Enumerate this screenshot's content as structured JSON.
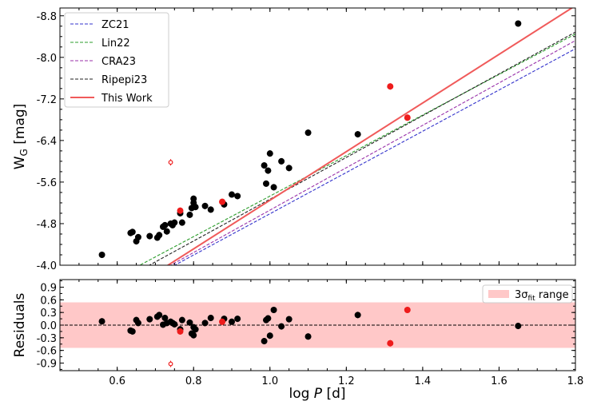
{
  "chart_data": {
    "type": "scatter",
    "xlabel": "log P [d]",
    "top": {
      "ylabel": "W_G [mag]",
      "xlim": [
        0.45,
        1.8
      ],
      "ylim": [
        -4.0,
        -8.95
      ],
      "yticks": [
        "-8.8",
        "-8.0",
        "-7.2",
        "-6.4",
        "-5.6",
        "-4.8",
        "-4.0"
      ],
      "legend_position": "top-left",
      "lines": [
        {
          "name": "ZC21",
          "color": "#3333cc",
          "dash": "dashed",
          "intercept": -1.02,
          "slope": -3.97
        },
        {
          "name": "Lin22",
          "color": "#2e9e2e",
          "dash": "dashed",
          "intercept": -1.43,
          "slope": -3.9
        },
        {
          "name": "CRA23",
          "color": "#9932aa",
          "dash": "dashed",
          "intercept": -0.98,
          "slope": -4.08
        },
        {
          "name": "Ripepi23",
          "color": "#222222",
          "dash": "dashed",
          "intercept": -1.25,
          "slope": -4.02
        },
        {
          "name": "This Work",
          "color": "#f05a5a",
          "dash": "solid",
          "intercept": -0.57,
          "slope": -4.68
        }
      ],
      "black_points": [
        {
          "x": 0.56,
          "y": -4.2
        },
        {
          "x": 0.635,
          "y": -4.62
        },
        {
          "x": 0.64,
          "y": -4.64
        },
        {
          "x": 0.65,
          "y": -4.46
        },
        {
          "x": 0.655,
          "y": -4.54
        },
        {
          "x": 0.685,
          "y": -4.56
        },
        {
          "x": 0.705,
          "y": -4.53
        },
        {
          "x": 0.71,
          "y": -4.58
        },
        {
          "x": 0.72,
          "y": -4.74
        },
        {
          "x": 0.725,
          "y": -4.77
        },
        {
          "x": 0.73,
          "y": -4.65
        },
        {
          "x": 0.74,
          "y": -4.8
        },
        {
          "x": 0.745,
          "y": -4.77
        },
        {
          "x": 0.75,
          "y": -4.82
        },
        {
          "x": 0.765,
          "y": -5.0
        },
        {
          "x": 0.77,
          "y": -4.82
        },
        {
          "x": 0.79,
          "y": -4.97
        },
        {
          "x": 0.795,
          "y": -5.1
        },
        {
          "x": 0.8,
          "y": -5.2
        },
        {
          "x": 0.8,
          "y": -5.28
        },
        {
          "x": 0.805,
          "y": -5.12
        },
        {
          "x": 0.83,
          "y": -5.14
        },
        {
          "x": 0.845,
          "y": -5.07
        },
        {
          "x": 0.88,
          "y": -5.17
        },
        {
          "x": 0.9,
          "y": -5.36
        },
        {
          "x": 0.915,
          "y": -5.33
        },
        {
          "x": 0.985,
          "y": -5.92
        },
        {
          "x": 0.99,
          "y": -5.57
        },
        {
          "x": 0.995,
          "y": -5.82
        },
        {
          "x": 1.0,
          "y": -6.15
        },
        {
          "x": 1.01,
          "y": -5.5
        },
        {
          "x": 1.03,
          "y": -6.0
        },
        {
          "x": 1.05,
          "y": -5.87
        },
        {
          "x": 1.1,
          "y": -6.55
        },
        {
          "x": 1.23,
          "y": -6.52
        },
        {
          "x": 1.65,
          "y": -8.65
        }
      ],
      "red_points": [
        {
          "x": 0.74,
          "y": -5.98
        },
        {
          "x": 0.765,
          "y": -5.05
        },
        {
          "x": 0.875,
          "y": -5.22
        },
        {
          "x": 1.315,
          "y": -7.44
        },
        {
          "x": 1.36,
          "y": -6.84
        }
      ]
    },
    "residuals": {
      "ylabel": "Residuals",
      "ylim": [
        -1.08,
        1.08
      ],
      "yticks": [
        "0.9",
        "0.6",
        "0.3",
        "0.0",
        "-0.3",
        "-0.6",
        "-0.9"
      ],
      "band": [
        -0.54,
        0.54
      ],
      "band_label": "3σ",
      "band_label_sub": "fit",
      "band_label_rest": " range",
      "legend_position": "top-right",
      "black_points": [
        {
          "x": 0.56,
          "y": 0.09
        },
        {
          "x": 0.635,
          "y": -0.13
        },
        {
          "x": 0.64,
          "y": -0.15
        },
        {
          "x": 0.65,
          "y": 0.12
        },
        {
          "x": 0.655,
          "y": 0.05
        },
        {
          "x": 0.685,
          "y": 0.14
        },
        {
          "x": 0.705,
          "y": 0.2
        },
        {
          "x": 0.71,
          "y": 0.24
        },
        {
          "x": 0.72,
          "y": 0.01
        },
        {
          "x": 0.725,
          "y": 0.17
        },
        {
          "x": 0.73,
          "y": 0.05
        },
        {
          "x": 0.74,
          "y": 0.08
        },
        {
          "x": 0.745,
          "y": 0.05
        },
        {
          "x": 0.75,
          "y": 0.02
        },
        {
          "x": 0.765,
          "y": -0.1
        },
        {
          "x": 0.77,
          "y": 0.12
        },
        {
          "x": 0.79,
          "y": 0.06
        },
        {
          "x": 0.795,
          "y": -0.2
        },
        {
          "x": 0.8,
          "y": -0.24
        },
        {
          "x": 0.8,
          "y": -0.05
        },
        {
          "x": 0.805,
          "y": -0.1
        },
        {
          "x": 0.83,
          "y": 0.05
        },
        {
          "x": 0.845,
          "y": 0.17
        },
        {
          "x": 0.88,
          "y": 0.15
        },
        {
          "x": 0.9,
          "y": 0.08
        },
        {
          "x": 0.915,
          "y": 0.15
        },
        {
          "x": 0.985,
          "y": -0.38
        },
        {
          "x": 0.99,
          "y": 0.12
        },
        {
          "x": 0.995,
          "y": 0.16
        },
        {
          "x": 1.0,
          "y": -0.25
        },
        {
          "x": 1.01,
          "y": 0.36
        },
        {
          "x": 1.03,
          "y": -0.03
        },
        {
          "x": 1.05,
          "y": 0.14
        },
        {
          "x": 1.1,
          "y": -0.27
        },
        {
          "x": 1.23,
          "y": 0.24
        },
        {
          "x": 1.65,
          "y": -0.02
        }
      ],
      "red_points": [
        {
          "x": 0.74,
          "y": -0.92
        },
        {
          "x": 0.765,
          "y": -0.15
        },
        {
          "x": 0.875,
          "y": 0.08
        },
        {
          "x": 1.315,
          "y": -0.43
        },
        {
          "x": 1.36,
          "y": 0.36
        }
      ]
    },
    "xticks": [
      "0.6",
      "0.8",
      "1.0",
      "1.2",
      "1.4",
      "1.6",
      "1.8"
    ],
    "xtick_values": [
      0.6,
      0.8,
      1.0,
      1.2,
      1.4,
      1.6,
      1.8
    ],
    "top_ytick_values": [
      -8.8,
      -8.0,
      -7.2,
      -6.4,
      -5.6,
      -4.8,
      -4.0
    ],
    "res_ytick_values": [
      0.9,
      0.6,
      0.3,
      0.0,
      -0.3,
      -0.6,
      -0.9
    ],
    "colors": {
      "black": "#000000",
      "red": "#ee1c1c",
      "band": "#ffc8c8"
    }
  }
}
